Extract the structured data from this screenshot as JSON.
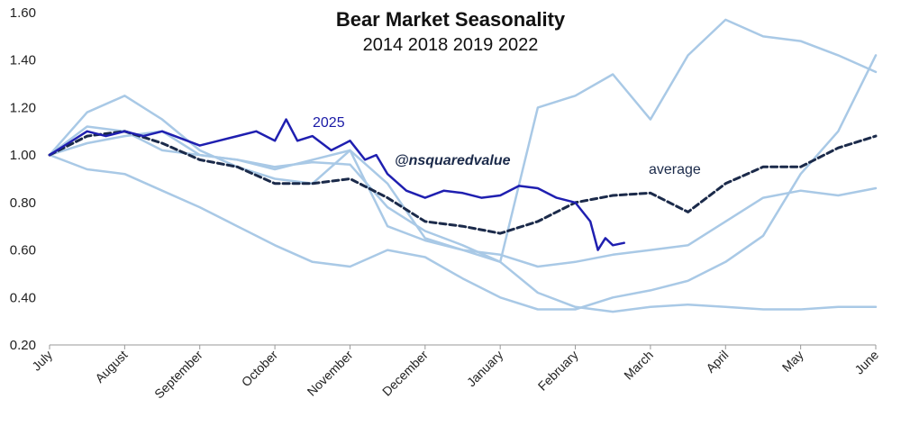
{
  "chart_data": {
    "type": "line",
    "title": "Bear Market Seasonality",
    "subtitle": "2014 2018 2019 2022",
    "xlabel": "",
    "ylabel": "",
    "ylim": [
      0.2,
      1.6
    ],
    "yticks": [
      "0.20",
      "0.40",
      "0.60",
      "0.80",
      "1.00",
      "1.20",
      "1.40",
      "1.60"
    ],
    "ytick_values": [
      0.2,
      0.4,
      0.6,
      0.8,
      1.0,
      1.2,
      1.4,
      1.6
    ],
    "categories": [
      "July",
      "August",
      "September",
      "October",
      "November",
      "December",
      "January",
      "February",
      "March",
      "April",
      "May",
      "June"
    ],
    "xlim": [
      0,
      11
    ],
    "grid": false,
    "colors": {
      "past_years": "#a9c9e6",
      "current": "#1f1fb0",
      "average": "#1b2a4a"
    },
    "annotations": [
      {
        "text": "2025",
        "series": "2025"
      },
      {
        "text": "@nsquaredvalue",
        "series": "watermark"
      },
      {
        "text": "average",
        "series": "average"
      }
    ],
    "series": [
      {
        "name": "2014",
        "style": "past",
        "x": [
          0,
          0.5,
          1,
          1.5,
          2,
          2.5,
          3,
          3.5,
          4,
          4.5,
          5,
          5.5,
          6,
          6.5,
          7,
          7.5,
          8,
          8.5,
          9,
          9.5,
          10,
          10.5,
          11
        ],
        "y": [
          1.0,
          1.12,
          1.1,
          1.02,
          1.0,
          0.98,
          0.94,
          0.98,
          1.02,
          0.7,
          0.64,
          0.6,
          0.58,
          0.53,
          0.55,
          0.58,
          0.6,
          0.62,
          0.72,
          0.82,
          0.85,
          0.83,
          0.86
        ]
      },
      {
        "name": "2018",
        "style": "past",
        "x": [
          0,
          0.5,
          1,
          1.5,
          2,
          2.5,
          3,
          3.5,
          4,
          4.5,
          5,
          5.5,
          6,
          6.5,
          7,
          7.5,
          8,
          8.5,
          9,
          9.5,
          10,
          10.5,
          11
        ],
        "y": [
          1.0,
          1.18,
          1.25,
          1.15,
          1.02,
          0.95,
          0.9,
          0.88,
          1.02,
          0.88,
          0.65,
          0.6,
          0.55,
          0.42,
          0.36,
          0.34,
          0.36,
          0.37,
          0.36,
          0.35,
          0.35,
          0.36,
          0.36
        ]
      },
      {
        "name": "2019",
        "style": "past",
        "x": [
          0,
          0.5,
          1,
          1.5,
          2,
          2.5,
          3,
          3.5,
          4,
          4.5,
          5,
          5.5,
          6,
          6.5,
          7,
          7.5,
          8,
          8.5,
          9,
          9.5,
          10,
          10.5,
          11
        ],
        "y": [
          1.0,
          0.94,
          0.92,
          0.85,
          0.78,
          0.7,
          0.62,
          0.55,
          0.53,
          0.6,
          0.57,
          0.48,
          0.4,
          0.35,
          0.35,
          0.4,
          0.43,
          0.47,
          0.55,
          0.66,
          0.92,
          1.1,
          1.42
        ]
      },
      {
        "name": "2022",
        "style": "past",
        "x": [
          0,
          0.5,
          1,
          1.5,
          2,
          2.5,
          3,
          3.5,
          4,
          4.5,
          5,
          5.5,
          6,
          6.5,
          7,
          7.5,
          8,
          8.5,
          9,
          9.5,
          10,
          10.5,
          11
        ],
        "y": [
          1.0,
          1.05,
          1.08,
          1.1,
          1.0,
          0.98,
          0.95,
          0.97,
          0.96,
          0.78,
          0.68,
          0.62,
          0.55,
          1.2,
          1.25,
          1.34,
          1.15,
          1.42,
          1.57,
          1.5,
          1.48,
          1.42,
          1.35
        ]
      },
      {
        "name": "2025",
        "style": "current",
        "x": [
          0,
          0.25,
          0.5,
          0.75,
          1,
          1.25,
          1.5,
          1.75,
          2,
          2.25,
          2.5,
          2.75,
          3,
          3.15,
          3.3,
          3.5,
          3.75,
          4,
          4.2,
          4.35,
          4.5,
          4.75,
          5,
          5.25,
          5.5,
          5.75,
          6,
          6.25,
          6.5,
          6.75,
          7,
          7.2,
          7.3,
          7.4,
          7.5,
          7.65
        ],
        "y": [
          1.0,
          1.05,
          1.1,
          1.08,
          1.1,
          1.08,
          1.1,
          1.07,
          1.04,
          1.06,
          1.08,
          1.1,
          1.06,
          1.15,
          1.06,
          1.08,
          1.02,
          1.06,
          0.98,
          1.0,
          0.92,
          0.85,
          0.82,
          0.85,
          0.84,
          0.82,
          0.83,
          0.87,
          0.86,
          0.82,
          0.8,
          0.72,
          0.6,
          0.65,
          0.62,
          0.63
        ]
      },
      {
        "name": "average",
        "style": "average",
        "x": [
          0,
          0.5,
          1,
          1.5,
          2,
          2.5,
          3,
          3.5,
          4,
          4.5,
          5,
          5.5,
          6,
          6.5,
          7,
          7.5,
          8,
          8.5,
          9,
          9.5,
          10,
          10.5,
          11
        ],
        "y": [
          1.0,
          1.08,
          1.1,
          1.05,
          0.98,
          0.95,
          0.88,
          0.88,
          0.9,
          0.82,
          0.72,
          0.7,
          0.67,
          0.72,
          0.8,
          0.83,
          0.84,
          0.76,
          0.88,
          0.95,
          0.95,
          1.03,
          1.08
        ]
      }
    ]
  }
}
